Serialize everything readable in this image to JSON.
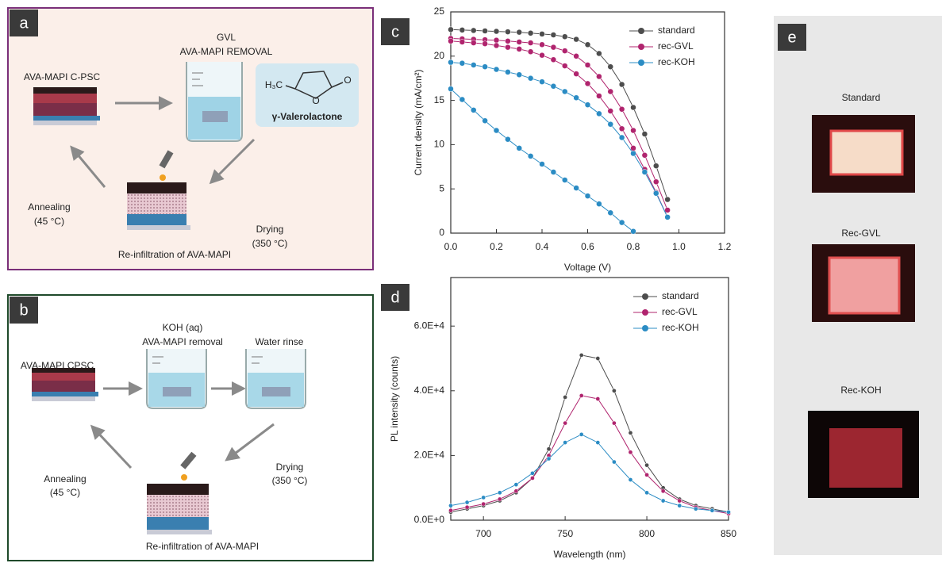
{
  "panels": {
    "a": {
      "letter": "a",
      "step_title": "GVL",
      "step_subtitle": "AVA-MAPI REMOVAL",
      "device": "AVA-MAPI C-PSC",
      "structure": {
        "methyl": "H₃C",
        "ring_oxygen": "O",
        "carbonyl_oxygen": "O",
        "name": "γ-Valerolactone"
      },
      "annealing": "Annealing",
      "annealing_temp": "(45 °C)",
      "drying": "Drying",
      "drying_temp": "(350 °C)",
      "reinfiltration": "Re-infiltration of AVA-MAPI"
    },
    "b": {
      "letter": "b",
      "step_title": "KOH  (aq)",
      "step_subtitle": "AVA-MAPI removal",
      "rinse": "Water rinse",
      "device": "AVA-MAPI CPSC",
      "annealing": "Annealing",
      "annealing_temp": "(45 °C)",
      "drying": "Drying",
      "drying_temp": "(350 °C)",
      "reinfiltration": "Re-infiltration of AVA-MAPI"
    },
    "e": {
      "letter": "e",
      "samples": [
        "Standard",
        "Rec-GVL",
        "Rec-KOH"
      ]
    }
  },
  "chart_data": [
    {
      "type": "line",
      "letter": "c",
      "xlabel": "Voltage (V)",
      "ylabel": "Current density (mA/cm²)",
      "x": [
        0,
        0.05,
        0.1,
        0.15,
        0.2,
        0.25,
        0.3,
        0.35,
        0.4,
        0.45,
        0.5,
        0.55,
        0.6,
        0.65,
        0.7,
        0.75,
        0.8,
        0.85,
        0.9,
        0.95,
        1.0
      ],
      "series": [
        {
          "name": "standard",
          "color": "#4d4d4d",
          "values": [
            23.0,
            22.95,
            22.9,
            22.85,
            22.8,
            22.75,
            22.7,
            22.6,
            22.5,
            22.4,
            22.2,
            21.9,
            21.3,
            20.3,
            18.8,
            16.8,
            14.2,
            11.2,
            7.6,
            3.8,
            null
          ]
        },
        {
          "name": "rec-GVL",
          "color": "#b0246e",
          "values": [
            22.0,
            21.95,
            21.9,
            21.85,
            21.8,
            21.7,
            21.6,
            21.5,
            21.3,
            21.0,
            20.6,
            20.0,
            19.0,
            17.7,
            16.0,
            14.0,
            11.6,
            8.8,
            5.8,
            2.6,
            null
          ]
        },
        {
          "color": "#b0246e",
          "values": [
            21.7,
            21.6,
            21.5,
            21.4,
            21.2,
            21.0,
            20.8,
            20.5,
            20.1,
            19.6,
            18.9,
            18.0,
            16.9,
            15.5,
            13.8,
            11.8,
            9.6,
            7.2,
            4.6,
            1.8,
            null
          ]
        },
        {
          "name": "rec-KOH",
          "color": "#2b8cc4",
          "values": [
            19.3,
            19.2,
            19.0,
            18.8,
            18.5,
            18.2,
            17.9,
            17.5,
            17.1,
            16.6,
            16.0,
            15.3,
            14.5,
            13.5,
            12.3,
            10.8,
            9.0,
            6.9,
            4.5,
            1.8,
            null
          ]
        },
        {
          "color": "#2b8cc4",
          "values": [
            16.3,
            15.1,
            13.9,
            12.7,
            11.6,
            10.6,
            9.6,
            8.7,
            7.8,
            6.9,
            6.0,
            5.1,
            4.2,
            3.3,
            2.3,
            1.2,
            0.2,
            null,
            null,
            null,
            null
          ]
        }
      ],
      "xlim": [
        0,
        1.2
      ],
      "ylim": [
        0,
        25
      ],
      "xticks": [
        {
          "value": 0,
          "label": "0.0"
        },
        0.2,
        0.4,
        0.6,
        0.8,
        {
          "value": 1,
          "label": "1.0"
        },
        1.2
      ],
      "yticks": [
        0,
        5,
        10,
        15,
        20,
        25
      ],
      "legend": "upper right",
      "grid": false
    },
    {
      "type": "line",
      "letter": "d",
      "xlabel": "Wavelength (nm)",
      "ylabel": "PL intensity (counts)",
      "x": [
        680,
        690,
        700,
        710,
        720,
        730,
        740,
        750,
        760,
        770,
        780,
        790,
        800,
        810,
        820,
        830,
        840,
        850
      ],
      "series": [
        {
          "name": "standard",
          "color": "#4d4d4d",
          "values": [
            2500,
            3500,
            4500,
            6000,
            8500,
            13000,
            22000,
            38000,
            51000,
            50000,
            40000,
            27000,
            17000,
            10000,
            6500,
            4500,
            3500,
            2500
          ]
        },
        {
          "name": "rec-GVL",
          "color": "#b0246e",
          "values": [
            3000,
            4000,
            5000,
            6500,
            9000,
            13000,
            20000,
            30000,
            38500,
            37500,
            30000,
            21000,
            14000,
            9000,
            6000,
            4000,
            3000,
            2000
          ]
        },
        {
          "name": "rec-KOH",
          "color": "#2b8cc4",
          "values": [
            4500,
            5500,
            7000,
            8500,
            11000,
            14500,
            19000,
            24000,
            26500,
            24000,
            18000,
            12500,
            8500,
            6000,
            4500,
            3500,
            3000,
            2500
          ]
        }
      ],
      "xlim": [
        680,
        850
      ],
      "ylim": [
        0,
        75000
      ],
      "xticks": [
        700,
        750,
        800,
        850
      ],
      "yticks": [
        {
          "value": 0,
          "label": "0.0E+0"
        },
        {
          "value": 20000,
          "label": "2.0E+4"
        },
        {
          "value": 40000,
          "label": "4.0E+4"
        },
        {
          "value": 60000,
          "label": "6.0E+4"
        }
      ],
      "legend": "upper right",
      "grid": false
    }
  ]
}
